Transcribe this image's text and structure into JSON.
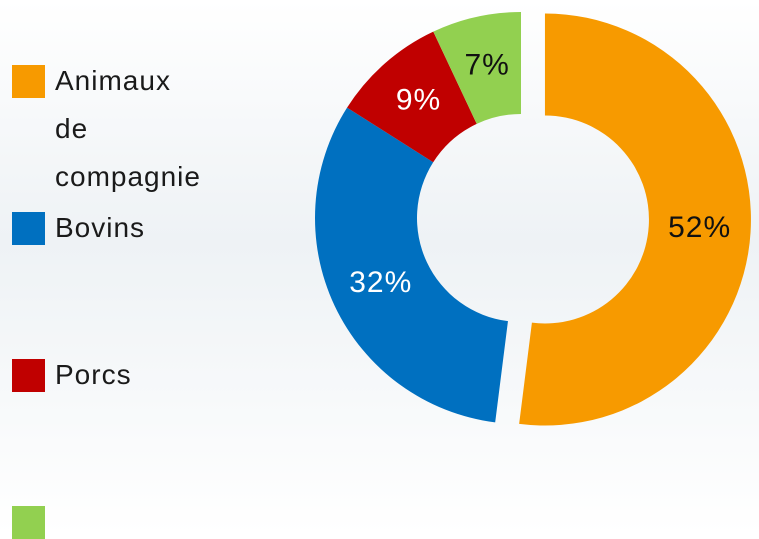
{
  "chart_data": {
    "type": "donut",
    "categories": [
      "Animaux de compagnie",
      "Bovins",
      "Porcs",
      null
    ],
    "values": [
      52,
      32,
      9,
      7
    ],
    "value_labels": [
      "52%",
      "32%",
      "9%",
      "7%"
    ],
    "colors": [
      "#f79a00",
      "#0070c0",
      "#c00000",
      "#92d050"
    ],
    "exploded": [
      0
    ]
  }
}
